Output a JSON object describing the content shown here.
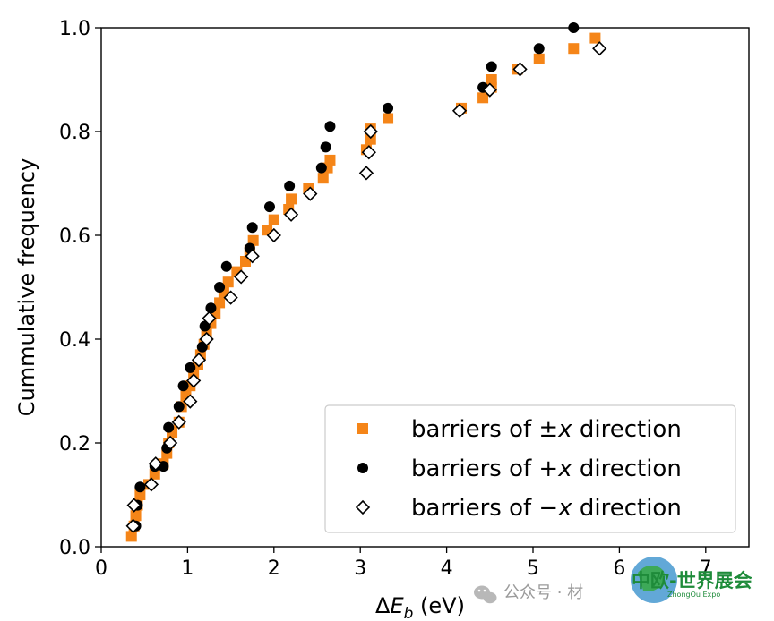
{
  "chart_data": {
    "type": "scatter",
    "title": "",
    "xlabel": "ΔE_b (eV)",
    "ylabel": "Cummulative frequency",
    "xlim": [
      0,
      7.5
    ],
    "ylim": [
      0,
      1.0
    ],
    "xticks": [
      "0",
      "1",
      "2",
      "3",
      "4",
      "5",
      "6",
      "7"
    ],
    "yticks": [
      "0.0",
      "0.2",
      "0.4",
      "0.6",
      "0.8",
      "1.0"
    ],
    "legend_position": "lower-right",
    "series": [
      {
        "name": "barriers of ±x direction",
        "legend_prefix": "barriers of ±",
        "legend_var": "x",
        "legend_suffix": " direction",
        "marker": "square",
        "color": "#f58518",
        "points": [
          [
            0.35,
            0.02
          ],
          [
            0.38,
            0.04
          ],
          [
            0.4,
            0.06
          ],
          [
            0.42,
            0.08
          ],
          [
            0.45,
            0.1
          ],
          [
            0.55,
            0.12
          ],
          [
            0.62,
            0.14
          ],
          [
            0.72,
            0.16
          ],
          [
            0.76,
            0.18
          ],
          [
            0.78,
            0.2
          ],
          [
            0.82,
            0.22
          ],
          [
            0.9,
            0.24
          ],
          [
            0.93,
            0.27
          ],
          [
            0.98,
            0.29
          ],
          [
            1.03,
            0.31
          ],
          [
            1.07,
            0.33
          ],
          [
            1.12,
            0.35
          ],
          [
            1.15,
            0.37
          ],
          [
            1.19,
            0.39
          ],
          [
            1.22,
            0.41
          ],
          [
            1.27,
            0.43
          ],
          [
            1.32,
            0.45
          ],
          [
            1.37,
            0.47
          ],
          [
            1.42,
            0.49
          ],
          [
            1.47,
            0.51
          ],
          [
            1.57,
            0.53
          ],
          [
            1.67,
            0.55
          ],
          [
            1.72,
            0.57
          ],
          [
            1.76,
            0.59
          ],
          [
            1.92,
            0.61
          ],
          [
            2.0,
            0.63
          ],
          [
            2.17,
            0.65
          ],
          [
            2.2,
            0.67
          ],
          [
            2.4,
            0.69
          ],
          [
            2.57,
            0.71
          ],
          [
            2.62,
            0.73
          ],
          [
            2.65,
            0.745
          ],
          [
            3.07,
            0.765
          ],
          [
            3.12,
            0.785
          ],
          [
            3.12,
            0.805
          ],
          [
            3.32,
            0.825
          ],
          [
            4.17,
            0.845
          ],
          [
            4.42,
            0.865
          ],
          [
            4.52,
            0.885
          ],
          [
            4.52,
            0.9
          ],
          [
            4.82,
            0.92
          ],
          [
            5.07,
            0.94
          ],
          [
            5.47,
            0.96
          ],
          [
            5.72,
            0.98
          ]
        ]
      },
      {
        "name": "barriers of +x direction",
        "legend_prefix": "barriers of +",
        "legend_var": "x",
        "legend_suffix": " direction",
        "marker": "circle",
        "color": "#000000",
        "points": [
          [
            0.4,
            0.04
          ],
          [
            0.42,
            0.08
          ],
          [
            0.45,
            0.115
          ],
          [
            0.62,
            0.155
          ],
          [
            0.72,
            0.155
          ],
          [
            0.76,
            0.19
          ],
          [
            0.78,
            0.23
          ],
          [
            0.9,
            0.27
          ],
          [
            0.95,
            0.31
          ],
          [
            1.03,
            0.345
          ],
          [
            1.17,
            0.385
          ],
          [
            1.2,
            0.425
          ],
          [
            1.27,
            0.46
          ],
          [
            1.37,
            0.5
          ],
          [
            1.45,
            0.54
          ],
          [
            1.72,
            0.575
          ],
          [
            1.75,
            0.615
          ],
          [
            1.95,
            0.655
          ],
          [
            2.18,
            0.695
          ],
          [
            2.55,
            0.73
          ],
          [
            2.6,
            0.77
          ],
          [
            2.65,
            0.81
          ],
          [
            3.32,
            0.845
          ],
          [
            4.42,
            0.885
          ],
          [
            4.52,
            0.925
          ],
          [
            5.07,
            0.96
          ],
          [
            5.47,
            1.0
          ]
        ]
      },
      {
        "name": "barriers of −x direction",
        "legend_prefix": "barriers of −",
        "legend_var": "x",
        "legend_suffix": " direction",
        "marker": "diamond",
        "color": "#000000",
        "points": [
          [
            0.37,
            0.04
          ],
          [
            0.38,
            0.08
          ],
          [
            0.58,
            0.12
          ],
          [
            0.63,
            0.16
          ],
          [
            0.8,
            0.2
          ],
          [
            0.9,
            0.24
          ],
          [
            1.03,
            0.28
          ],
          [
            1.07,
            0.32
          ],
          [
            1.13,
            0.36
          ],
          [
            1.22,
            0.4
          ],
          [
            1.25,
            0.44
          ],
          [
            1.5,
            0.48
          ],
          [
            1.62,
            0.52
          ],
          [
            1.75,
            0.56
          ],
          [
            2.0,
            0.6
          ],
          [
            2.2,
            0.64
          ],
          [
            2.42,
            0.68
          ],
          [
            3.07,
            0.72
          ],
          [
            3.1,
            0.76
          ],
          [
            3.12,
            0.8
          ],
          [
            4.15,
            0.84
          ],
          [
            4.5,
            0.88
          ],
          [
            4.85,
            0.92
          ],
          [
            5.77,
            0.96
          ]
        ]
      }
    ]
  },
  "watermark": {
    "caption": "公众号 · 材",
    "brand": "中欧-世界展会",
    "brand_sub": "ZhongOu Expo"
  }
}
